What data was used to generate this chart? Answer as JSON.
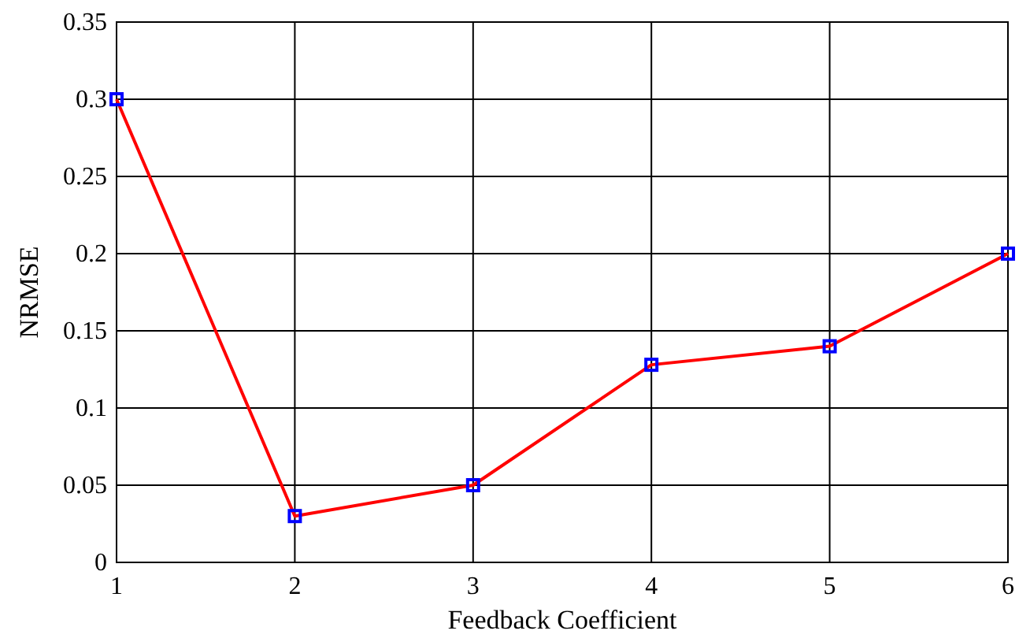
{
  "chart_data": {
    "type": "line",
    "xlabel": "Feedback Coefficient",
    "ylabel": "NRMSE",
    "x": [
      1,
      2,
      3,
      4,
      5,
      6
    ],
    "series": [
      {
        "color": "#ff0000",
        "values": [
          0.3,
          0.03,
          0.05,
          0.128,
          0.14,
          0.2
        ]
      }
    ],
    "xlim": [
      1,
      6
    ],
    "xticks": [
      1,
      2,
      3,
      4,
      5,
      6
    ],
    "ylim": [
      0,
      0.35
    ],
    "yticks": [
      0,
      0.05,
      0.1,
      0.15,
      0.2,
      0.25,
      0.3,
      0.35
    ],
    "grid": true,
    "marker": "square",
    "line_style": "solid"
  }
}
